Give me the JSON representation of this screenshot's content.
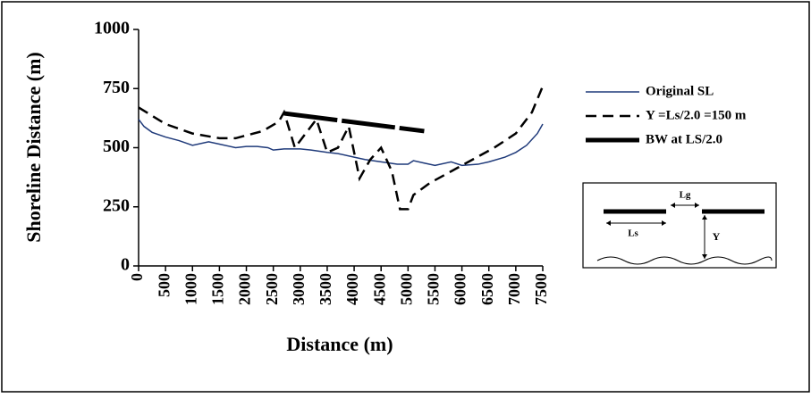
{
  "chart_data": {
    "type": "line",
    "xlabel": "Distance (m)",
    "ylabel": "Shoreline Distance (m)",
    "xlim": [
      0,
      7500
    ],
    "xticks": [
      0,
      500,
      1000,
      1500,
      2000,
      2500,
      3000,
      3500,
      4000,
      4500,
      5000,
      5500,
      6000,
      6500,
      7000,
      7500
    ],
    "ylim": [
      0,
      1000
    ],
    "yticks": [
      0,
      250,
      500,
      750,
      1000
    ],
    "legend": "right",
    "series": [
      {
        "name": "Original SL",
        "color": "#1f3a7a",
        "style": "solid",
        "x": [
          0,
          100,
          250,
          500,
          750,
          1000,
          1300,
          1500,
          1800,
          2000,
          2200,
          2400,
          2500,
          2700,
          3000,
          3200,
          3500,
          3700,
          4000,
          4200,
          4500,
          4800,
          5000,
          5100,
          5300,
          5500,
          5800,
          6000,
          6300,
          6500,
          6800,
          7000,
          7200,
          7400,
          7500
        ],
        "values": [
          620,
          590,
          565,
          545,
          530,
          510,
          525,
          515,
          500,
          505,
          505,
          500,
          490,
          495,
          495,
          490,
          480,
          475,
          460,
          450,
          440,
          430,
          430,
          445,
          435,
          425,
          440,
          425,
          430,
          440,
          460,
          480,
          510,
          560,
          600
        ]
      },
      {
        "name": "Y =Ls/2.0 =150 m",
        "color": "#000000",
        "style": "dashed",
        "x": [
          0,
          500,
          1000,
          1500,
          1800,
          2300,
          2600,
          2700,
          2900,
          3100,
          3300,
          3500,
          3700,
          3900,
          4100,
          4300,
          4500,
          4700,
          4850,
          5000,
          5100,
          5400,
          5800,
          6200,
          6600,
          7000,
          7300,
          7500
        ],
        "values": [
          670,
          600,
          560,
          540,
          540,
          570,
          610,
          650,
          500,
          560,
          620,
          480,
          500,
          590,
          370,
          450,
          500,
          400,
          240,
          240,
          300,
          350,
          400,
          450,
          500,
          560,
          650,
          760
        ]
      },
      {
        "name": "BW at LS/2.0",
        "color": "#000000",
        "style": "thick",
        "x": [
          2700,
          5300
        ],
        "values": [
          645,
          570
        ]
      }
    ]
  },
  "inset": {
    "labels": [
      "Lg",
      "Ls",
      "Y"
    ]
  }
}
